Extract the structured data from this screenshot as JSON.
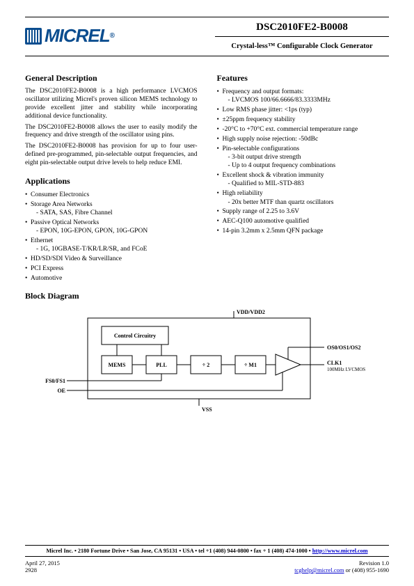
{
  "header": {
    "logo_text": "MICREL",
    "part_number": "DSC2010FE2-B0008",
    "subtitle": "Crystal-less™ Configurable Clock Generator"
  },
  "general": {
    "heading": "General Description",
    "p1": "The DSC2010FE2-B0008 is a high performance LVCMOS oscillator utilizing Micrel's proven silicon MEMS technology to provide excellent jitter and stability while incorporating additional device functionality.",
    "p2": "The DSC2010FE2-B0008 allows the user to easily modify the frequency and drive strength of the oscillator using pins.",
    "p3": "The DSC2010FE2-B0008 has provision for up to four user-defined pre-programmed, pin-selectable output frequencies, and eight pin-selectable output drive levels to help reduce EMI."
  },
  "applications": {
    "heading": "Applications",
    "items": [
      {
        "main": "Consumer Electronics"
      },
      {
        "main": "Storage Area Networks",
        "sub": [
          "SATA, SAS, Fibre Channel"
        ]
      },
      {
        "main": "Passive Optical Networks",
        "sub": [
          "EPON, 10G-EPON, GPON, 10G-GPON"
        ]
      },
      {
        "main": "Ethernet",
        "sub": [
          "1G, 10GBASE-T/KR/LR/SR, and FCoE"
        ]
      },
      {
        "main": "HD/SD/SDI Video & Surveillance"
      },
      {
        "main": "PCI Express"
      },
      {
        "main": "Automotive"
      }
    ]
  },
  "features": {
    "heading": "Features",
    "items": [
      {
        "main": "Frequency and output formats:",
        "sub": [
          "LVCMOS 100/66.6666/83.3333MHz"
        ]
      },
      {
        "main": "Low RMS phase jitter: <1ps (typ)"
      },
      {
        "main": "±25ppm frequency stability"
      },
      {
        "main": "-20°C to +70°C ext. commercial temperature range"
      },
      {
        "main": "High supply noise rejection: -50dBc"
      },
      {
        "main": "Pin-selectable configurations",
        "sub": [
          "3-bit output drive strength",
          "Up to 4 output frequency combinations"
        ]
      },
      {
        "main": "Excellent shock & vibration immunity",
        "sub": [
          "Qualified to MIL-STD-883"
        ]
      },
      {
        "main": "High reliability",
        "sub": [
          "20x better MTF than quartz oscillators"
        ]
      },
      {
        "main": "Supply range of 2.25 to 3.6V"
      },
      {
        "main": "AEC-Q100 automotive qualified"
      },
      {
        "main": "14-pin 3.2mm x 2.5mm QFN package"
      }
    ]
  },
  "block_diagram": {
    "heading": "Block Diagram",
    "labels": {
      "vdd": "VDD/VDD2",
      "ctrl": "Control Circuitry",
      "mems": "MEMS",
      "pll": "PLL",
      "div2": "÷ 2",
      "divm1": "÷ M1",
      "os": "OS0/OS1/OS2",
      "clk": "CLK1",
      "clk_sub": "100MHz LVCMOS",
      "fs": "FS0/FS1",
      "oe": "OE",
      "vss": "VSS"
    },
    "style": {
      "box_stroke": "#000000",
      "box_fill": "#ffffff",
      "line_stroke": "#000000",
      "line_width": 1,
      "font_size_small": 7,
      "font_size_label": 8,
      "font_size_bold": 8
    }
  },
  "footer": {
    "bar": "Micrel Inc. • 2180 Fortune Drive • San Jose, CA 95131 • USA • tel +1 (408) 944-0800 • fax + 1 (408) 474-1000 • ",
    "bar_link": "http://www.micrel.com",
    "date": "April 27, 2015",
    "code": "2928",
    "rev": "Revision 1.0",
    "email": "tcghelp@micrel.com",
    "phone_suffix": " or (408) 955-1690"
  }
}
